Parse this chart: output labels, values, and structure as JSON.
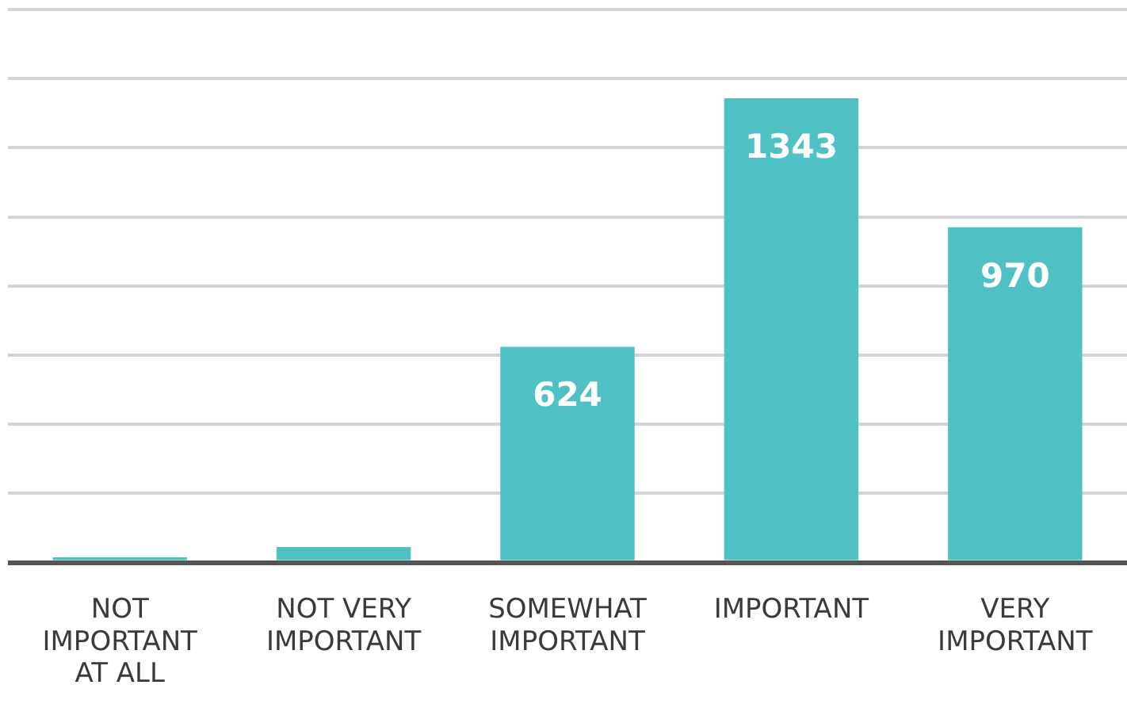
{
  "chart_data": {
    "type": "bar",
    "categories": [
      "NOT\nIMPORTANT\nAT ALL",
      "NOT VERY\nIMPORTANT",
      "SOMEWHAT\nIMPORTANT",
      "IMPORTANT",
      "VERY\nIMPORTANT"
    ],
    "values": [
      15,
      45,
      624,
      1343,
      970
    ],
    "value_labels": [
      null,
      null,
      "624",
      "1343",
      "970"
    ],
    "color": "#4fc1c5",
    "ylim": [
      0,
      1600
    ],
    "tick_labels": "x",
    "grid": "y",
    "legend": false
  }
}
